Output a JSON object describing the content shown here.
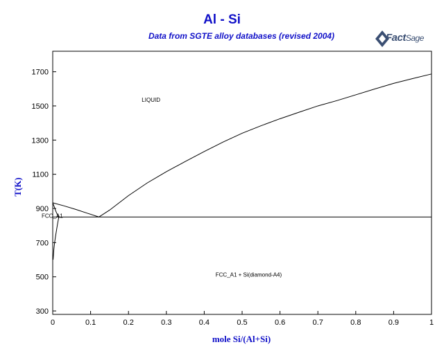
{
  "header": {
    "title": "Al - Si",
    "subtitle": "Data from SGTE alloy databases (revised 2004)",
    "logo_main": "Fact",
    "logo_sub": "Sage"
  },
  "chart_data": {
    "type": "line",
    "title": "Al - Si",
    "subtitle": "Data from SGTE alloy databases (revised 2004)",
    "xlabel": "mole Si/(Al+Si)",
    "ylabel": "T(K)",
    "xlim": [
      0,
      1
    ],
    "ylim": [
      280,
      1820
    ],
    "x_ticks": [
      0,
      0.1,
      0.2,
      0.3,
      0.4,
      0.5,
      0.6,
      0.7,
      0.8,
      0.9,
      1
    ],
    "x_tick_labels": [
      "0",
      "0.1",
      "0.2",
      "0.3",
      "0.4",
      "0.5",
      "0.6",
      "0.7",
      "0.8",
      "0.9",
      "1"
    ],
    "y_ticks": [
      300,
      500,
      700,
      900,
      1100,
      1300,
      1500,
      1700
    ],
    "y_tick_labels": [
      "300",
      "500",
      "700",
      "900",
      "1100",
      "1300",
      "1500",
      "1700"
    ],
    "grid": false,
    "series": [
      {
        "points": [
          [
            0,
            933
          ],
          [
            0.03,
            915
          ],
          [
            0.06,
            895
          ],
          [
            0.09,
            873
          ],
          [
            0.122,
            850
          ]
        ]
      },
      {
        "points": [
          [
            0.122,
            850
          ],
          [
            0.15,
            890
          ],
          [
            0.2,
            975
          ],
          [
            0.25,
            1050
          ],
          [
            0.3,
            1115
          ],
          [
            0.35,
            1175
          ],
          [
            0.4,
            1233
          ],
          [
            0.45,
            1289
          ],
          [
            0.5,
            1340
          ],
          [
            0.55,
            1384
          ],
          [
            0.6,
            1425
          ],
          [
            0.65,
            1463
          ],
          [
            0.7,
            1500
          ],
          [
            0.75,
            1531
          ],
          [
            0.8,
            1565
          ],
          [
            0.85,
            1599
          ],
          [
            0.9,
            1632
          ],
          [
            0.95,
            1660
          ],
          [
            1.0,
            1687
          ]
        ]
      },
      {
        "points": [
          [
            0,
            933
          ],
          [
            0.004,
            910
          ],
          [
            0.008,
            885
          ],
          [
            0.012,
            865
          ],
          [
            0.016,
            850
          ]
        ]
      },
      {
        "points": [
          [
            0.016,
            850
          ],
          [
            0.012,
            800
          ],
          [
            0.008,
            745
          ],
          [
            0.005,
            700
          ],
          [
            0.003,
            660
          ],
          [
            0.001,
            600
          ]
        ]
      },
      {
        "points": [
          [
            0,
            850
          ],
          [
            1,
            850
          ]
        ]
      }
    ],
    "annotations": [
      {
        "text": "LIQUID",
        "x": 0.235,
        "y": 1525
      },
      {
        "text": "FCC_A1",
        "x": -0.03,
        "y": 845
      },
      {
        "text": "FCC_A1 + Si(diamond-A4)",
        "x": 0.43,
        "y": 500
      }
    ]
  }
}
